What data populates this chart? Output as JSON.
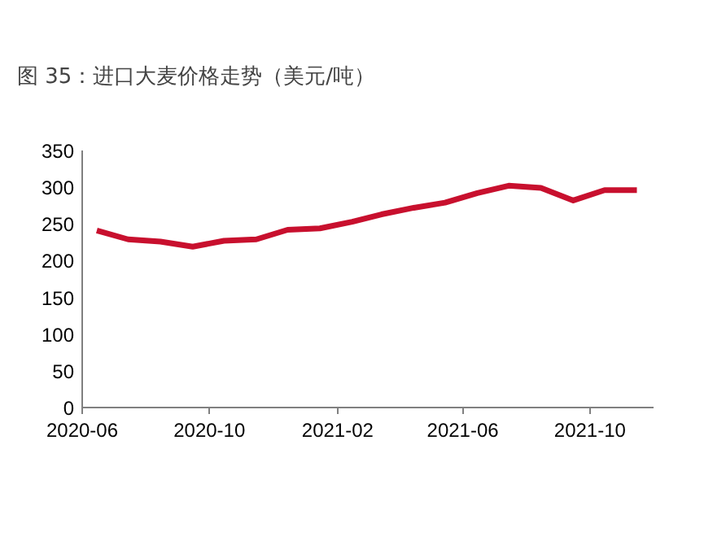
{
  "chart_data": {
    "type": "line",
    "title": "图 35：进口大麦价格走势（美元/吨）",
    "x": [
      "2020-06-15",
      "2020-07-15",
      "2020-08-15",
      "2020-09-15",
      "2020-10-15",
      "2020-11-15",
      "2020-12-15",
      "2021-01-15",
      "2021-02-15",
      "2021-03-15",
      "2021-04-15",
      "2021-05-15",
      "2021-06-15",
      "2021-07-15",
      "2021-08-15",
      "2021-09-15",
      "2021-10-15",
      "2021-11-15"
    ],
    "series": [
      {
        "color": "#c8102e",
        "values": [
          241,
          229,
          226,
          219,
          227,
          229,
          242,
          244,
          253,
          263,
          272,
          279,
          292,
          302,
          299,
          282,
          296,
          296
        ]
      }
    ],
    "xlim": [
      "2020-06-01",
      "2021-12-01"
    ],
    "xticks": [
      "2020-06",
      "2020-10",
      "2021-02",
      "2021-06",
      "2021-10"
    ],
    "ylim": [
      0,
      350
    ],
    "yticks": [
      0,
      50,
      100,
      150,
      200,
      250,
      300,
      350
    ],
    "grid": false,
    "marker": "none",
    "line_style": "solid"
  }
}
